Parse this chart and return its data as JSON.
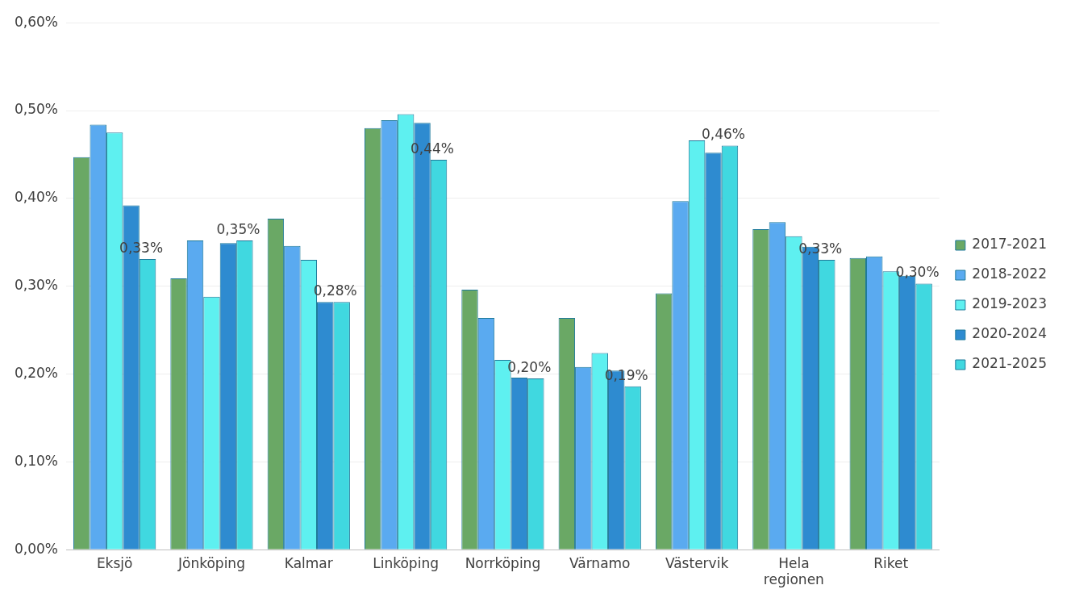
{
  "chart_data": {
    "type": "bar",
    "categories": [
      "Eksjö",
      "Jönköping",
      "Kalmar",
      "Linköping",
      "Norrköping",
      "Värnamo",
      "Västervik",
      "Hela regionen",
      "Riket"
    ],
    "series": [
      {
        "name": "2017-2021",
        "color": "#6aa865",
        "values": [
          0.447,
          0.309,
          0.377,
          0.48,
          0.296,
          0.264,
          0.292,
          0.365,
          0.332
        ]
      },
      {
        "name": "2018-2022",
        "color": "#5aaaf0",
        "values": [
          0.484,
          0.352,
          0.346,
          0.489,
          0.264,
          0.208,
          0.397,
          0.373,
          0.334
        ]
      },
      {
        "name": "2019-2023",
        "color": "#5ef0f0",
        "values": [
          0.475,
          0.288,
          0.33,
          0.496,
          0.216,
          0.224,
          0.466,
          0.357,
          0.317
        ]
      },
      {
        "name": "2020-2024",
        "color": "#2e8bd0",
        "values": [
          0.392,
          0.349,
          0.282,
          0.486,
          0.196,
          0.204,
          0.452,
          0.345,
          0.312
        ]
      },
      {
        "name": "2021-2025",
        "color": "#40d8e0",
        "values": [
          0.331,
          0.352,
          0.282,
          0.444,
          0.195,
          0.186,
          0.46,
          0.33,
          0.303
        ],
        "value_labels": [
          "0,33%",
          "0,35%",
          "0,28%",
          "0,44%",
          "0,20%",
          "0,19%",
          "0,46%",
          "0,33%",
          "0,30%"
        ]
      }
    ],
    "ylim": [
      0,
      0.6
    ],
    "yticks": [
      {
        "value": 0,
        "label": "0,00%"
      },
      {
        "value": 0.1,
        "label": "0,10%"
      },
      {
        "value": 0.2,
        "label": "0,20%"
      },
      {
        "value": 0.3,
        "label": "0,30%"
      },
      {
        "value": 0.4,
        "label": "0,40%"
      },
      {
        "value": 0.5,
        "label": "0,50%"
      },
      {
        "value": 0.6,
        "label": "0,60%"
      }
    ],
    "grid": "y",
    "legend": "right"
  }
}
